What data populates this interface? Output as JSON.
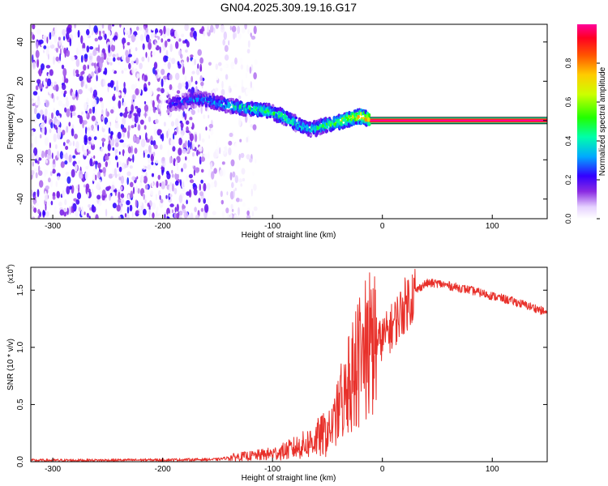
{
  "title": "GN04.2025.309.19.16.G17",
  "colors": {
    "snr_line": "#e8302a",
    "axis": "#000000"
  },
  "chart_data": [
    {
      "type": "heatmap",
      "title": "GN04.2025.309.19.16.G17",
      "xlabel": "Height of straight line (km)",
      "ylabel": "Frequency (Hz)",
      "xlim": [
        -320,
        150
      ],
      "ylim": [
        -50,
        49
      ],
      "xticks": [
        -300,
        -200,
        -100,
        0,
        100
      ],
      "xtick_labels": [
        "-300",
        "-200",
        "-100",
        "0",
        "100"
      ],
      "yticks": [
        -40,
        -20,
        0,
        20,
        40
      ],
      "ytick_labels": [
        "-40",
        "-20",
        "0",
        "20",
        "40"
      ],
      "colorbar": {
        "label": "Normalized spectral amplitude",
        "range": [
          0,
          1
        ],
        "ticks": [
          0,
          0.2,
          0.4,
          0.6,
          0.8
        ],
        "tick_labels": [
          "0.0",
          "0.2",
          "0.4",
          "0.6",
          "0.8"
        ]
      },
      "noise_region_x": [
        -320,
        -160
      ],
      "ridge": {
        "x": [
          -195,
          -180,
          -165,
          -150,
          -135,
          -120,
          -105,
          -90,
          -80,
          -70,
          -60,
          -50,
          -40,
          -30,
          -22,
          -17,
          -10,
          0,
          150
        ],
        "freq": [
          8,
          10,
          11,
          9,
          7,
          6,
          5,
          2,
          -1,
          -4,
          -4,
          -2,
          -1,
          1,
          2,
          2,
          0,
          0,
          0
        ],
        "amplitude": [
          0.3,
          0.35,
          0.4,
          0.45,
          0.5,
          0.55,
          0.6,
          0.6,
          0.55,
          0.5,
          0.55,
          0.65,
          0.7,
          0.8,
          0.85,
          0.95,
          1.0,
          1.0,
          1.0
        ]
      }
    },
    {
      "type": "line",
      "xlabel": "Height of straight line (km)",
      "ylabel": "SNR (10 * v/v)",
      "y_exponent_label": "(x10",
      "y_exponent_power": "4",
      "y_exponent_close": ")",
      "xlim": [
        -320,
        150
      ],
      "ylim": [
        0,
        17000
      ],
      "xticks": [
        -300,
        -200,
        -100,
        0,
        100
      ],
      "xtick_labels": [
        "-300",
        "-200",
        "-100",
        "0",
        "100"
      ],
      "yticks": [
        0,
        5000,
        10000,
        15000
      ],
      "ytick_labels": [
        "0.0",
        "0.5",
        "1.0",
        "1.5"
      ],
      "series": [
        {
          "name": "SNR",
          "x": [
            -320,
            -250,
            -200,
            -150,
            -140,
            -130,
            -120,
            -110,
            -100,
            -90,
            -80,
            -70,
            -60,
            -50,
            -45,
            -40,
            -35,
            -30,
            -25,
            -20,
            -15,
            -10,
            -5,
            0,
            5,
            10,
            15,
            20,
            25,
            30,
            35,
            40,
            50,
            60,
            80,
            100,
            120,
            140,
            150
          ],
          "y": [
            120,
            130,
            160,
            200,
            350,
            450,
            500,
            600,
            700,
            900,
            1200,
            1500,
            2000,
            2500,
            3200,
            4500,
            5500,
            6500,
            7500,
            8500,
            9300,
            9800,
            10300,
            10800,
            11300,
            12000,
            12800,
            13600,
            14300,
            14900,
            15300,
            15600,
            15600,
            15400,
            15000,
            14500,
            14000,
            13400,
            13000
          ]
        }
      ]
    }
  ]
}
